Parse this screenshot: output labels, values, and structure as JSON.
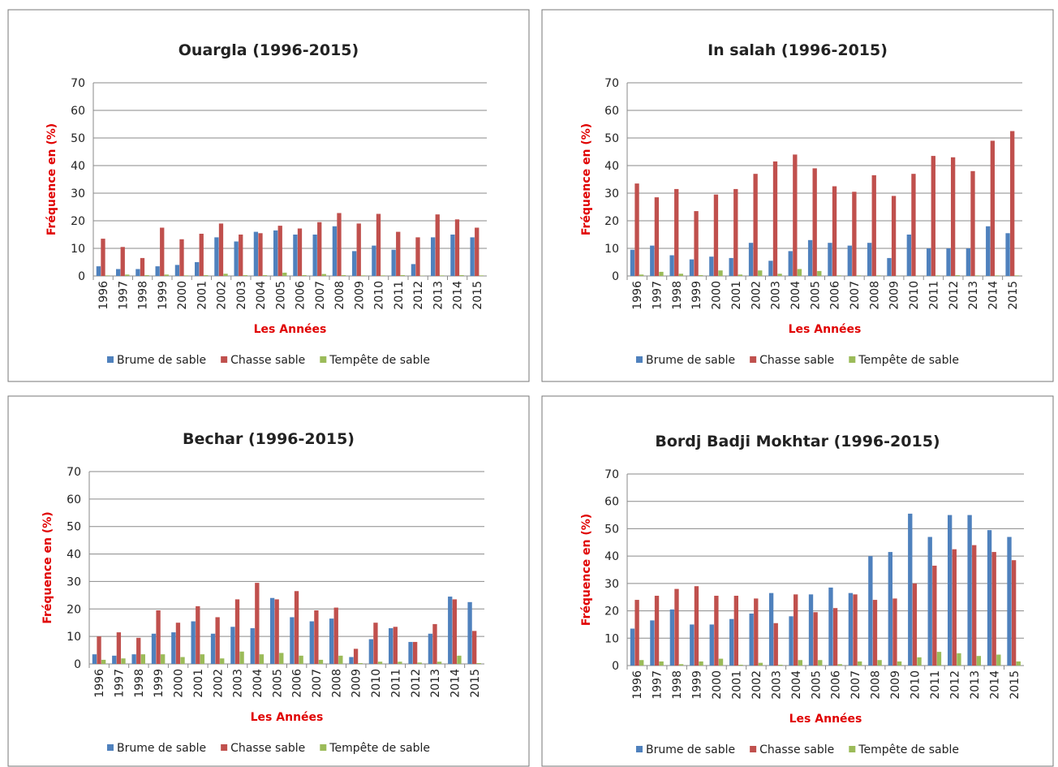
{
  "chart_data": [
    {
      "type": "bar",
      "title": "Ouargla (1996-2015)",
      "x_label": "Les Années",
      "y_label": "Fréquence en (%)",
      "categories": [
        "1996",
        "1997",
        "1998",
        "1999",
        "2000",
        "2001",
        "2002",
        "2003",
        "2004",
        "2005",
        "2006",
        "2007",
        "2008",
        "2009",
        "2010",
        "2011",
        "2012",
        "2013",
        "2014",
        "2015"
      ],
      "series": [
        {
          "name": "Brume de sable",
          "color": "#4f81bd",
          "values": [
            3.5,
            2.5,
            2.5,
            3.5,
            4,
            5,
            14,
            12.5,
            16,
            16.5,
            15,
            15,
            18,
            9,
            11,
            9.5,
            4.3,
            14,
            15,
            14
          ]
        },
        {
          "name": "Chasse sable",
          "color": "#c0504d",
          "values": [
            13.5,
            10.5,
            6.5,
            17.5,
            13.3,
            15.3,
            19,
            15,
            15.5,
            18.2,
            17.2,
            19.5,
            22.8,
            19,
            22.5,
            16,
            14,
            22.3,
            20.5,
            17.5
          ]
        },
        {
          "name": "Tempête de sable",
          "color": "#9bbb59",
          "values": [
            0.2,
            0.5,
            0.3,
            0.5,
            0.2,
            0.3,
            0.8,
            0.3,
            0.3,
            1.2,
            0.3,
            0.7,
            0.3,
            0.2,
            0.2,
            0.3,
            0.1,
            0.2,
            0.3,
            0.2
          ]
        }
      ],
      "ylim": [
        0,
        70
      ],
      "yticks": [
        0,
        10,
        20,
        30,
        40,
        50,
        60,
        70
      ],
      "grid": true,
      "legend": "bottom"
    },
    {
      "type": "bar",
      "title": "In salah (1996-2015)",
      "x_label": "Les Années",
      "y_label": "Fréquence en (%)",
      "categories": [
        "1996",
        "1997",
        "1998",
        "1999",
        "2000",
        "2001",
        "2002",
        "2003",
        "2004",
        "2005",
        "2006",
        "2007",
        "2008",
        "2009",
        "2010",
        "2011",
        "2012",
        "2013",
        "2014",
        "2015"
      ],
      "series": [
        {
          "name": "Brume de sable",
          "color": "#4f81bd",
          "values": [
            9.5,
            11,
            7.5,
            6,
            7,
            6.5,
            12,
            5.5,
            9,
            13,
            12,
            11,
            12,
            6.5,
            15,
            10,
            10,
            10,
            18,
            15.5
          ]
        },
        {
          "name": "Chasse sable",
          "color": "#c0504d",
          "values": [
            33.5,
            28.5,
            31.5,
            23.5,
            29.5,
            31.5,
            37,
            41.5,
            44,
            39,
            32.5,
            30.5,
            36.5,
            29,
            37,
            43.5,
            43,
            38,
            49,
            52.5
          ]
        },
        {
          "name": "Tempête de sable",
          "color": "#9bbb59",
          "values": [
            0.5,
            1.5,
            0.8,
            0.3,
            2,
            0.5,
            2,
            0.8,
            2.5,
            1.8,
            0.2,
            0.2,
            0.2,
            0.1,
            0.1,
            0.2,
            0.3,
            0.2,
            0.2,
            0.2
          ]
        }
      ],
      "ylim": [
        0,
        70
      ],
      "yticks": [
        0,
        10,
        20,
        30,
        40,
        50,
        60,
        70
      ],
      "grid": true,
      "legend": "bottom"
    },
    {
      "type": "bar",
      "title": "Bechar (1996-2015)",
      "x_label": "Les Années",
      "y_label": "Fréquence en (%)",
      "categories": [
        "1996",
        "1997",
        "1998",
        "1999",
        "2000",
        "2001",
        "2002",
        "2003",
        "2004",
        "2005",
        "2006",
        "2007",
        "2008",
        "2009",
        "2010",
        "2011",
        "2012",
        "2013",
        "2014",
        "2015"
      ],
      "series": [
        {
          "name": "Brume de sable",
          "color": "#4f81bd",
          "values": [
            3.5,
            3,
            3.5,
            11,
            11.5,
            15.5,
            11,
            13.5,
            13,
            24,
            17,
            15.5,
            16.5,
            2.5,
            9,
            13,
            8,
            11,
            24.5,
            22.5
          ]
        },
        {
          "name": "Chasse sable",
          "color": "#c0504d",
          "values": [
            10,
            11.5,
            9.5,
            19.5,
            15,
            21,
            17,
            23.5,
            29.5,
            23.5,
            26.5,
            19.5,
            20.5,
            5.5,
            15,
            13.5,
            8,
            14.5,
            23.5,
            12
          ]
        },
        {
          "name": "Tempête de sable",
          "color": "#9bbb59",
          "values": [
            1.5,
            2,
            3.5,
            3.5,
            2.5,
            3.5,
            2,
            4.5,
            3.5,
            4,
            3,
            1.5,
            3,
            0.3,
            0.8,
            0.8,
            0.5,
            0.8,
            3,
            0.3
          ]
        }
      ],
      "ylim": [
        0,
        70
      ],
      "yticks": [
        0,
        10,
        20,
        30,
        40,
        50,
        60,
        70
      ],
      "grid": true,
      "legend": "bottom"
    },
    {
      "type": "bar",
      "title": "Bordj Badji Mokhtar (1996-2015)",
      "x_label": "Les Années",
      "y_label": "Fréquence en (%)",
      "categories": [
        "1996",
        "1997",
        "1998",
        "1999",
        "2000",
        "2001",
        "2002",
        "2003",
        "2004",
        "2005",
        "2006",
        "2007",
        "2008",
        "2009",
        "2010",
        "2011",
        "2012",
        "2013",
        "2014",
        "2015"
      ],
      "series": [
        {
          "name": "Brume de sable",
          "color": "#4f81bd",
          "values": [
            13.5,
            16.5,
            20.5,
            15,
            15,
            17,
            19,
            26.5,
            18,
            26,
            28.5,
            26.5,
            40,
            41.5,
            55.5,
            47,
            55,
            55,
            49.5,
            47
          ]
        },
        {
          "name": "Chasse sable",
          "color": "#c0504d",
          "values": [
            24,
            25.5,
            28,
            29,
            25.5,
            25.5,
            24.5,
            15.5,
            26,
            19.5,
            21,
            26,
            24,
            24.5,
            30,
            36.5,
            42.5,
            44,
            41.5,
            38.5
          ]
        },
        {
          "name": "Tempête de sable",
          "color": "#9bbb59",
          "values": [
            2,
            1.5,
            0.5,
            1.5,
            2.5,
            0.3,
            1,
            0.3,
            2,
            2,
            0.5,
            1.5,
            2,
            1.5,
            3,
            5,
            4.5,
            3.5,
            4,
            1.5
          ]
        }
      ],
      "ylim": [
        0,
        70
      ],
      "yticks": [
        0,
        10,
        20,
        30,
        40,
        50,
        60,
        70
      ],
      "grid": true,
      "legend": "bottom"
    }
  ]
}
